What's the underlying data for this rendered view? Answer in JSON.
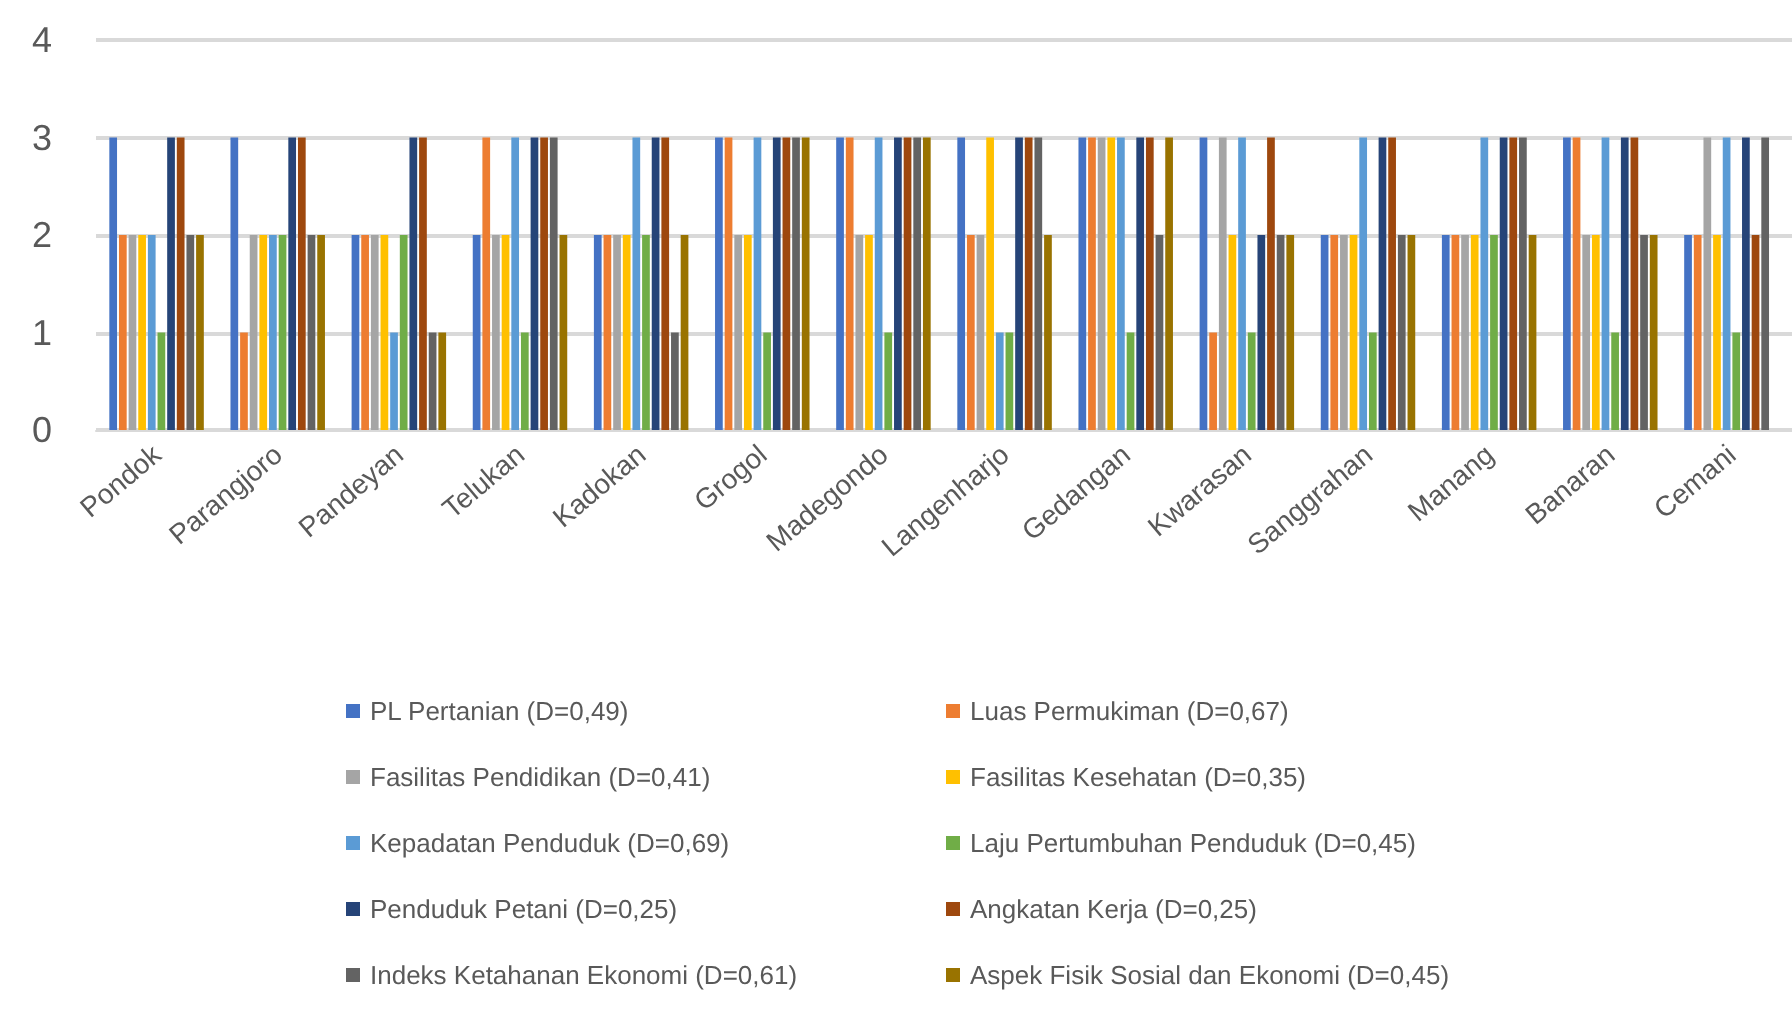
{
  "chart_data": {
    "type": "bar",
    "categories": [
      "Pondok",
      "Parangjoro",
      "Pandeyan",
      "Telukan",
      "Kadokan",
      "Grogol",
      "Madegondo",
      "Langenharjo",
      "Gedangan",
      "Kwarasan",
      "Sanggrahan",
      "Manang",
      "Banaran",
      "Cemani"
    ],
    "series": [
      {
        "name": "PL Pertanian (D=0,49)",
        "color": "#4472c4",
        "values": [
          3,
          3,
          2,
          2,
          2,
          3,
          3,
          3,
          3,
          3,
          2,
          2,
          3,
          2
        ]
      },
      {
        "name": "Luas Permukiman (D=0,67)",
        "color": "#ed7d31",
        "values": [
          2,
          1,
          2,
          3,
          2,
          3,
          3,
          2,
          3,
          1,
          2,
          2,
          3,
          2
        ]
      },
      {
        "name": "Fasilitas Pendidikan (D=0,41)",
        "color": "#a5a5a5",
        "values": [
          2,
          2,
          2,
          2,
          2,
          2,
          2,
          2,
          3,
          3,
          2,
          2,
          2,
          3
        ]
      },
      {
        "name": "Fasilitas Kesehatan (D=0,35)",
        "color": "#ffc000",
        "values": [
          2,
          2,
          2,
          2,
          2,
          2,
          2,
          3,
          3,
          2,
          2,
          2,
          2,
          2
        ]
      },
      {
        "name": "Kepadatan Penduduk (D=0,69)",
        "color": "#5b9bd5",
        "values": [
          2,
          2,
          1,
          3,
          3,
          3,
          3,
          1,
          3,
          3,
          3,
          3,
          3,
          3
        ]
      },
      {
        "name": "Laju Pertumbuhan Penduduk (D=0,45)",
        "color": "#70ad47",
        "values": [
          1,
          2,
          2,
          1,
          2,
          1,
          1,
          1,
          1,
          1,
          1,
          2,
          1,
          1
        ]
      },
      {
        "name": "Penduduk Petani (D=0,25)",
        "color": "#264478",
        "values": [
          3,
          3,
          3,
          3,
          3,
          3,
          3,
          3,
          3,
          2,
          3,
          3,
          3,
          3
        ]
      },
      {
        "name": "Angkatan Kerja (D=0,25)",
        "color": "#9e480e",
        "values": [
          3,
          3,
          3,
          3,
          3,
          3,
          3,
          3,
          3,
          3,
          3,
          3,
          3,
          2
        ]
      },
      {
        "name": "Indeks Ketahanan Ekonomi (D=0,61)",
        "color": "#636363",
        "values": [
          2,
          2,
          1,
          3,
          1,
          3,
          3,
          3,
          2,
          2,
          2,
          3,
          2,
          3
        ]
      },
      {
        "name": "Aspek Fisik Sosial dan Ekonomi (D=0,45)",
        "color": "#997300",
        "values": [
          2,
          2,
          1,
          2,
          2,
          3,
          3,
          2,
          3,
          2,
          2,
          2,
          2,
          null
        ]
      }
    ],
    "ylim": [
      0,
      4
    ],
    "yticks": [
      0,
      1,
      2,
      3,
      4
    ],
    "grid": "y",
    "legend": "bottom"
  }
}
